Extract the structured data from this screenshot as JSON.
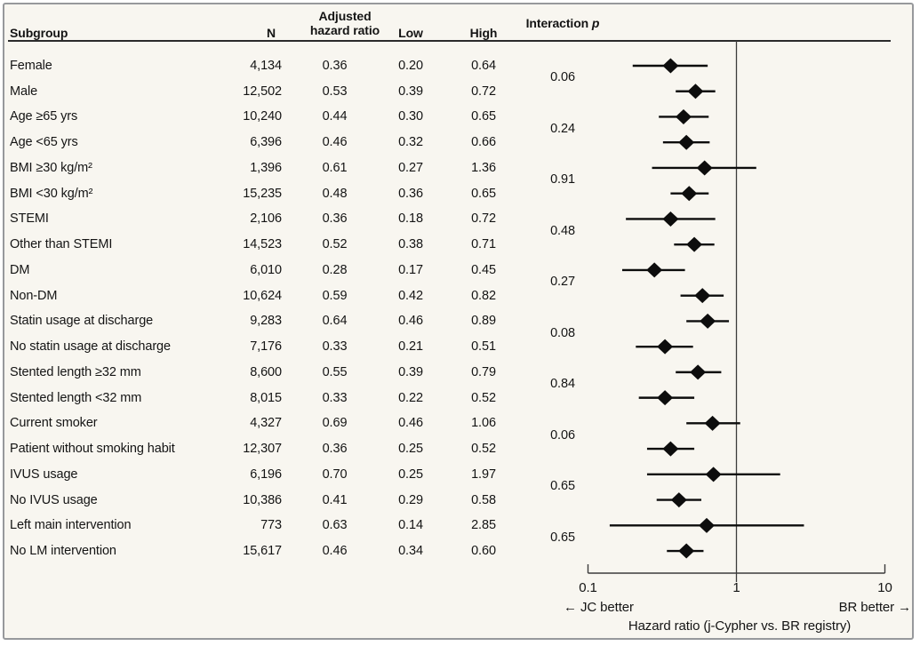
{
  "colors": {
    "background": "#f8f6f0",
    "panel_border": "#97999c",
    "text": "#141414",
    "rule": "#2b2b2b",
    "axis_line": "#3c3c3c",
    "marker": "#0d0d0d"
  },
  "header": {
    "subgroup": "Subgroup",
    "n": "N",
    "adjusted_line1": "Adjusted",
    "adjusted_line2": "hazard ratio",
    "low": "Low",
    "high": "High",
    "interaction": "Interaction",
    "interaction_p_symbol": "p"
  },
  "chart_data": {
    "type": "forest",
    "x_scale": "log10",
    "columns": [
      "Subgroup",
      "N",
      "Adjusted hazard ratio",
      "Low",
      "High",
      "Interaction p"
    ],
    "rows": [
      {
        "label": "Female",
        "n": "4,134",
        "hr": "0.36",
        "low": "0.20",
        "high": "0.64"
      },
      {
        "label": "Male",
        "n": "12,502",
        "hr": "0.53",
        "low": "0.39",
        "high": "0.72"
      },
      {
        "label": "Age ≥65 yrs",
        "n": "10,240",
        "hr": "0.44",
        "low": "0.30",
        "high": "0.65"
      },
      {
        "label": "Age <65 yrs",
        "n": "6,396",
        "hr": "0.46",
        "low": "0.32",
        "high": "0.66"
      },
      {
        "label": "BMI ≥30 kg/m²",
        "n": "1,396",
        "hr": "0.61",
        "low": "0.27",
        "high": "1.36"
      },
      {
        "label": "BMI <30 kg/m²",
        "n": "15,235",
        "hr": "0.48",
        "low": "0.36",
        "high": "0.65"
      },
      {
        "label": "STEMI",
        "n": "2,106",
        "hr": "0.36",
        "low": "0.18",
        "high": "0.72"
      },
      {
        "label": "Other than STEMI",
        "n": "14,523",
        "hr": "0.52",
        "low": "0.38",
        "high": "0.71"
      },
      {
        "label": "DM",
        "n": "6,010",
        "hr": "0.28",
        "low": "0.17",
        "high": "0.45"
      },
      {
        "label": "Non-DM",
        "n": "10,624",
        "hr": "0.59",
        "low": "0.42",
        "high": "0.82"
      },
      {
        "label": "Statin usage at discharge",
        "n": "9,283",
        "hr": "0.64",
        "low": "0.46",
        "high": "0.89"
      },
      {
        "label": "No statin usage at discharge",
        "n": "7,176",
        "hr": "0.33",
        "low": "0.21",
        "high": "0.51"
      },
      {
        "label": "Stented length ≥32 mm",
        "n": "8,600",
        "hr": "0.55",
        "low": "0.39",
        "high": "0.79"
      },
      {
        "label": "Stented length <32 mm",
        "n": "8,015",
        "hr": "0.33",
        "low": "0.22",
        "high": "0.52"
      },
      {
        "label": "Current smoker",
        "n": "4,327",
        "hr": "0.69",
        "low": "0.46",
        "high": "1.06"
      },
      {
        "label": "Patient without smoking habit",
        "n": "12,307",
        "hr": "0.36",
        "low": "0.25",
        "high": "0.52"
      },
      {
        "label": "IVUS usage",
        "n": "6,196",
        "hr": "0.70",
        "low": "0.25",
        "high": "1.97"
      },
      {
        "label": "No IVUS usage",
        "n": "10,386",
        "hr": "0.41",
        "low": "0.29",
        "high": "0.58"
      },
      {
        "label": "Left main intervention",
        "n": "773",
        "hr": "0.63",
        "low": "0.14",
        "high": "2.85"
      },
      {
        "label": "No LM intervention",
        "n": "15,617",
        "hr": "0.46",
        "low": "0.34",
        "high": "0.60"
      }
    ],
    "interaction_p": [
      {
        "pair": [
          "Female",
          "Male"
        ],
        "p": "0.06"
      },
      {
        "pair": [
          "Age ≥65 yrs",
          "Age <65 yrs"
        ],
        "p": "0.24"
      },
      {
        "pair": [
          "BMI ≥30 kg/m²",
          "BMI <30 kg/m²"
        ],
        "p": "0.91"
      },
      {
        "pair": [
          "STEMI",
          "Other than STEMI"
        ],
        "p": "0.48"
      },
      {
        "pair": [
          "DM",
          "Non-DM"
        ],
        "p": "0.27"
      },
      {
        "pair": [
          "Statin usage at discharge",
          "No statin usage at discharge"
        ],
        "p": "0.08"
      },
      {
        "pair": [
          "Stented length ≥32 mm",
          "Stented length <32 mm"
        ],
        "p": "0.84"
      },
      {
        "pair": [
          "Current smoker",
          "Patient without smoking habit"
        ],
        "p": "0.06"
      },
      {
        "pair": [
          "IVUS usage",
          "No IVUS usage"
        ],
        "p": "0.65"
      },
      {
        "pair": [
          "Left main intervention",
          "No LM intervention"
        ],
        "p": "0.65"
      }
    ],
    "axis": {
      "xlim": [
        0.1,
        10
      ],
      "ticks": [
        0.1,
        1,
        10
      ],
      "tick_labels": [
        "0.1",
        "1",
        "10"
      ],
      "reference_line": 1,
      "grid": false,
      "left_label": "← JC better",
      "right_label": "BR better →",
      "xlabel": "Hazard ratio (j-Cypher vs. BR registry)"
    }
  }
}
